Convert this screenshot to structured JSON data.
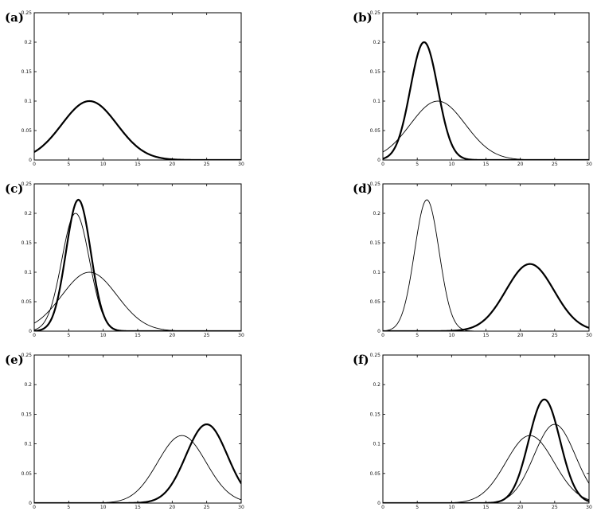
{
  "chart_data": [
    {
      "type": "line",
      "panel_label": "(a)",
      "xlim": [
        0,
        30
      ],
      "ylim": [
        0,
        0.25
      ],
      "x_ticks": [
        "0",
        "5",
        "10",
        "15",
        "20",
        "25",
        "30"
      ],
      "y_ticks": [
        "0",
        "0.05",
        "0.1",
        "0.15",
        "0.2",
        "0.25"
      ],
      "grid": false,
      "series": [
        {
          "style": "thick",
          "distribution": "normal",
          "mean": 8,
          "sd": 4,
          "peak": 0.1
        }
      ]
    },
    {
      "type": "line",
      "panel_label": "(b)",
      "xlim": [
        0,
        30
      ],
      "ylim": [
        0,
        0.25
      ],
      "x_ticks": [
        "0",
        "5",
        "10",
        "15",
        "20",
        "25",
        "30"
      ],
      "y_ticks": [
        "0",
        "0.05",
        "0.1",
        "0.15",
        "0.2",
        "0.25"
      ],
      "grid": false,
      "series": [
        {
          "style": "thick",
          "distribution": "normal",
          "mean": 6,
          "sd": 2,
          "peak": 0.2
        },
        {
          "style": "thin",
          "distribution": "normal",
          "mean": 8,
          "sd": 4,
          "peak": 0.1
        }
      ]
    },
    {
      "type": "line",
      "panel_label": "(c)",
      "xlim": [
        0,
        30
      ],
      "ylim": [
        0,
        0.25
      ],
      "x_ticks": [
        "0",
        "5",
        "10",
        "15",
        "20",
        "25",
        "30"
      ],
      "y_ticks": [
        "0",
        "0.05",
        "0.1",
        "0.15",
        "0.2",
        "0.25"
      ],
      "grid": false,
      "series": [
        {
          "style": "thick",
          "distribution": "normal",
          "mean": 6.4,
          "sd": 1.79,
          "peak": 0.223
        },
        {
          "style": "thin",
          "distribution": "normal",
          "mean": 6,
          "sd": 2,
          "peak": 0.2
        },
        {
          "style": "thin",
          "distribution": "normal",
          "mean": 8,
          "sd": 4,
          "peak": 0.1
        }
      ]
    },
    {
      "type": "line",
      "panel_label": "(d)",
      "xlim": [
        0,
        30
      ],
      "ylim": [
        0,
        0.25
      ],
      "x_ticks": [
        "0",
        "5",
        "10",
        "15",
        "20",
        "25",
        "30"
      ],
      "y_ticks": [
        "0",
        "0.05",
        "0.1",
        "0.15",
        "0.2",
        "0.25"
      ],
      "grid": false,
      "series": [
        {
          "style": "thick",
          "distribution": "normal",
          "mean": 21.4,
          "sd": 3.5,
          "peak": 0.114
        },
        {
          "style": "thin",
          "distribution": "normal",
          "mean": 6.4,
          "sd": 1.79,
          "peak": 0.223
        }
      ]
    },
    {
      "type": "line",
      "panel_label": "(e)",
      "xlim": [
        0,
        30
      ],
      "ylim": [
        0,
        0.25
      ],
      "x_ticks": [
        "0",
        "5",
        "10",
        "15",
        "20",
        "25",
        "30"
      ],
      "y_ticks": [
        "0",
        "0.05",
        "0.1",
        "0.15",
        "0.2",
        "0.25"
      ],
      "grid": false,
      "series": [
        {
          "style": "thick",
          "distribution": "normal",
          "mean": 25,
          "sd": 3,
          "peak": 0.133
        },
        {
          "style": "thin",
          "distribution": "normal",
          "mean": 21.4,
          "sd": 3.5,
          "peak": 0.114
        }
      ]
    },
    {
      "type": "line",
      "panel_label": "(f)",
      "xlim": [
        0,
        30
      ],
      "ylim": [
        0,
        0.25
      ],
      "x_ticks": [
        "0",
        "5",
        "10",
        "15",
        "20",
        "25",
        "30"
      ],
      "y_ticks": [
        "0",
        "0.05",
        "0.1",
        "0.15",
        "0.2",
        "0.25"
      ],
      "grid": false,
      "series": [
        {
          "style": "thick",
          "distribution": "normal",
          "mean": 23.5,
          "sd": 2.28,
          "peak": 0.175
        },
        {
          "style": "thin",
          "distribution": "normal",
          "mean": 21.4,
          "sd": 3.5,
          "peak": 0.114
        },
        {
          "style": "thin",
          "distribution": "normal",
          "mean": 25,
          "sd": 3,
          "peak": 0.133
        }
      ]
    }
  ]
}
